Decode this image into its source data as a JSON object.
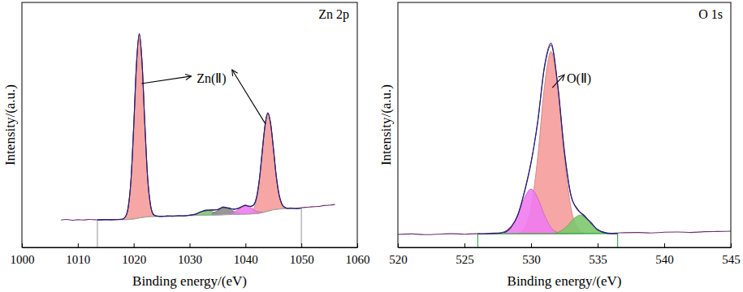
{
  "chart_data": [
    {
      "type": "line",
      "title": "Zn 2p",
      "x_label": "Binding energy/(eV)",
      "y_label": "Intensity/(a.u.)",
      "xlim": [
        1000,
        1060
      ],
      "xticks": [
        1000,
        1010,
        1020,
        1030,
        1040,
        1050,
        1060
      ],
      "ylim": [
        0,
        100
      ],
      "tick_labels": "x",
      "background": {
        "color": "#a6a6a6",
        "x": [
          1013.5,
          1017,
          1019,
          1020,
          1021,
          1022,
          1023,
          1025,
          1030,
          1035,
          1040,
          1042,
          1043,
          1044,
          1045,
          1046,
          1048,
          1050
        ],
        "values": [
          11.3,
          11.3,
          11.4,
          11.6,
          12.0,
          12.4,
          12.6,
          12.7,
          13.0,
          13.3,
          13.6,
          13.8,
          14.2,
          14.8,
          15.4,
          15.7,
          15.9,
          16.0
        ]
      },
      "fit_range": [
        1013.5,
        1050
      ],
      "series": [
        {
          "type": "area",
          "color": "#f59c9a",
          "x": [
            1018,
            1018.5,
            1019,
            1019.5,
            1020,
            1020.5,
            1021,
            1021.5,
            1022,
            1022.5,
            1023,
            1023.5,
            1024
          ],
          "values": [
            11.5,
            12.4,
            16.1,
            27.3,
            49.1,
            74.9,
            87.0,
            75.3,
            49.9,
            28.3,
            17.3,
            13.6,
            12.8
          ]
        },
        {
          "type": "area",
          "color": "#f59c9a",
          "x": [
            1040.5,
            1041,
            1041.5,
            1042,
            1042.5,
            1043,
            1043.5,
            1044,
            1044.5,
            1045,
            1045.5,
            1046,
            1046.5,
            1047,
            1047.5
          ],
          "values": [
            13.8,
            14.2,
            15.8,
            19.6,
            27.6,
            39.0,
            50.0,
            54.8,
            50.6,
            40.2,
            29.2,
            21.5,
            17.8,
            16.3,
            16.0
          ]
        },
        {
          "type": "area",
          "color": "#7cc86f",
          "x": [
            1030,
            1031,
            1032,
            1033,
            1034,
            1035,
            1036
          ],
          "values": [
            13.1,
            13.6,
            14.5,
            15.2,
            14.7,
            13.8,
            13.4
          ]
        },
        {
          "type": "area",
          "color": "#8c8c8c",
          "x": [
            1034,
            1035,
            1036,
            1037,
            1038,
            1039
          ],
          "values": [
            13.7,
            15.0,
            16.3,
            15.9,
            14.6,
            13.8
          ]
        },
        {
          "type": "area",
          "color": "#f07cf0",
          "x": [
            1037,
            1038,
            1039,
            1040,
            1041,
            1042,
            1043
          ],
          "values": [
            13.6,
            14.4,
            16.0,
            17.1,
            16.2,
            14.7,
            14.4
          ]
        },
        {
          "type": "line",
          "color": "#6a2f6e",
          "x": [
            1007,
            1008,
            1009,
            1010,
            1011,
            1012,
            1013,
            1014,
            1015,
            1016,
            1017,
            1018,
            1018.5,
            1019,
            1019.5,
            1020,
            1020.5,
            1021,
            1021.5,
            1022,
            1022.5,
            1023,
            1023.5,
            1024,
            1025,
            1026,
            1027,
            1028,
            1029,
            1030,
            1031,
            1032,
            1033,
            1034,
            1035,
            1036,
            1037,
            1038,
            1039,
            1040,
            1040.5,
            1041,
            1041.5,
            1042,
            1042.5,
            1043,
            1043.5,
            1044,
            1044.5,
            1045,
            1045.5,
            1046,
            1046.5,
            1047,
            1047.5,
            1048,
            1049,
            1050,
            1051,
            1052,
            1053,
            1054,
            1055,
            1056
          ],
          "values": [
            11.2,
            11.4,
            11.1,
            11.3,
            11.2,
            11.4,
            11.3,
            11.2,
            11.4,
            11.3,
            11.4,
            11.6,
            12.5,
            16.3,
            27.0,
            49.5,
            75.2,
            87.3,
            75.0,
            50.2,
            28.0,
            17.5,
            13.4,
            12.9,
            12.6,
            12.9,
            12.7,
            13.0,
            12.8,
            13.2,
            13.4,
            14.6,
            15.0,
            15.4,
            15.3,
            16.5,
            15.9,
            15.7,
            16.1,
            17.3,
            16.8,
            16.9,
            17.3,
            20.8,
            27.9,
            39.5,
            49.7,
            55.0,
            50.3,
            40.5,
            29.0,
            21.7,
            17.6,
            16.5,
            15.9,
            16.1,
            15.8,
            16.2,
            16.4,
            16.6,
            16.7,
            17.1,
            17.2,
            17.5
          ]
        },
        {
          "type": "line",
          "color": "#1c1f78",
          "x": [
            1013.5,
            1016,
            1018,
            1018.5,
            1019,
            1019.5,
            1020,
            1020.5,
            1021,
            1021.5,
            1022,
            1022.5,
            1023,
            1023.5,
            1024,
            1025,
            1027,
            1030,
            1031,
            1032,
            1033,
            1034,
            1035,
            1036,
            1037,
            1038,
            1039,
            1040,
            1040.5,
            1041,
            1041.5,
            1042,
            1042.5,
            1043,
            1043.5,
            1044,
            1044.5,
            1045,
            1045.5,
            1046,
            1046.5,
            1047,
            1047.5,
            1048,
            1050
          ],
          "values": [
            11.3,
            11.3,
            11.5,
            12.4,
            16.1,
            27.3,
            49.1,
            74.9,
            87.0,
            75.3,
            49.9,
            28.3,
            17.3,
            13.6,
            12.8,
            12.7,
            12.8,
            13.1,
            13.6,
            14.5,
            15.2,
            15.2,
            15.5,
            16.3,
            16.1,
            15.5,
            16.3,
            17.1,
            16.9,
            16.7,
            17.5,
            20.5,
            28.1,
            39.2,
            50.0,
            54.8,
            50.6,
            40.2,
            29.2,
            21.5,
            17.8,
            16.3,
            16.0,
            15.9,
            16.0
          ]
        }
      ],
      "annotations": [
        {
          "text": "Zn(Ⅱ)",
          "x": 1033.9,
          "y": 68.9,
          "arrows": [
            {
              "from": [
                1021.4,
                66.9
              ],
              "to": [
                1030.3,
                69.9
              ]
            },
            {
              "from": [
                1043.6,
                50.3
              ],
              "to": [
                1037.6,
                72.5
              ]
            }
          ]
        }
      ]
    },
    {
      "type": "line",
      "title": "O 1s",
      "x_label": "Binding energy/(eV)",
      "y_label": "Intensity/(a.u.)",
      "xlim": [
        520,
        545
      ],
      "xticks": [
        520,
        525,
        530,
        535,
        540,
        545
      ],
      "ylim": [
        0,
        100
      ],
      "tick_labels": "x",
      "background": {
        "color": "#3cb043",
        "x": [
          526,
          536.5
        ],
        "values": [
          5.5,
          5.7
        ]
      },
      "fit_range": [
        526,
        536.5
      ],
      "series": [
        {
          "type": "area",
          "color": "#f59c9a",
          "x": [
            529,
            529.5,
            530,
            530.5,
            531,
            531.5,
            532,
            532.5,
            533,
            533.5,
            534
          ],
          "values": [
            5.6,
            7.8,
            16.2,
            36.8,
            65.5,
            80.0,
            65.5,
            36.8,
            16.2,
            7.8,
            5.8
          ]
        },
        {
          "type": "area",
          "color": "#f07cf0",
          "x": [
            528,
            528.5,
            529,
            529.5,
            530,
            530.5,
            531,
            531.5,
            532
          ],
          "values": [
            6.1,
            8.1,
            13.2,
            20.2,
            23.8,
            20.2,
            13.2,
            8.1,
            6.1
          ]
        },
        {
          "type": "area",
          "color": "#7cc86f",
          "x": [
            531.7,
            532.2,
            532.7,
            533.2,
            533.7,
            534.2,
            534.7,
            535.2,
            535.7
          ],
          "values": [
            5.7,
            6.6,
            8.7,
            11.7,
            13.2,
            11.7,
            8.7,
            6.6,
            5.7
          ]
        },
        {
          "type": "line",
          "color": "#6a2f6e",
          "x": [
            520,
            521,
            522,
            523,
            524,
            525,
            526,
            526.5,
            527,
            527.5,
            528,
            528.5,
            529,
            529.5,
            530,
            530.5,
            531,
            531.5,
            532,
            532.5,
            533,
            533.5,
            534,
            534.5,
            535,
            535.5,
            536,
            536.5,
            537,
            538,
            539,
            540,
            541,
            542,
            543,
            544,
            545
          ],
          "values": [
            5.3,
            5.5,
            5.2,
            5.4,
            5.6,
            5.4,
            5.6,
            5.5,
            5.8,
            5.9,
            6.4,
            8.5,
            13.0,
            22.8,
            34.9,
            51.0,
            73.8,
            83.4,
            66.0,
            39.6,
            21.0,
            15.6,
            12.6,
            10.2,
            7.1,
            6.2,
            5.8,
            5.9,
            6.0,
            6.1,
            5.9,
            6.2,
            6.3,
            6.1,
            6.4,
            6.5,
            6.6
          ]
        },
        {
          "type": "line",
          "color": "#1c1f78",
          "x": [
            526,
            526.5,
            527,
            527.5,
            528,
            528.5,
            529,
            529.5,
            530,
            530.5,
            531,
            531.5,
            532,
            532.5,
            533,
            533.5,
            534,
            534.5,
            535,
            535.5,
            536,
            536.5
          ],
          "values": [
            5.5,
            5.5,
            5.6,
            5.7,
            6.1,
            8.2,
            13.3,
            22.5,
            34.5,
            51.5,
            73.2,
            82.6,
            66.6,
            39.1,
            21.2,
            15.3,
            13.0,
            9.9,
            7.3,
            6.0,
            5.6,
            5.6
          ]
        }
      ],
      "annotations": [
        {
          "text": "O(Ⅱ)",
          "x": 533.6,
          "y": 68.9,
          "arrows": [
            {
              "from": [
                531.6,
                65.2
              ],
              "to": [
                532.5,
                70.5
              ]
            }
          ]
        }
      ]
    }
  ]
}
